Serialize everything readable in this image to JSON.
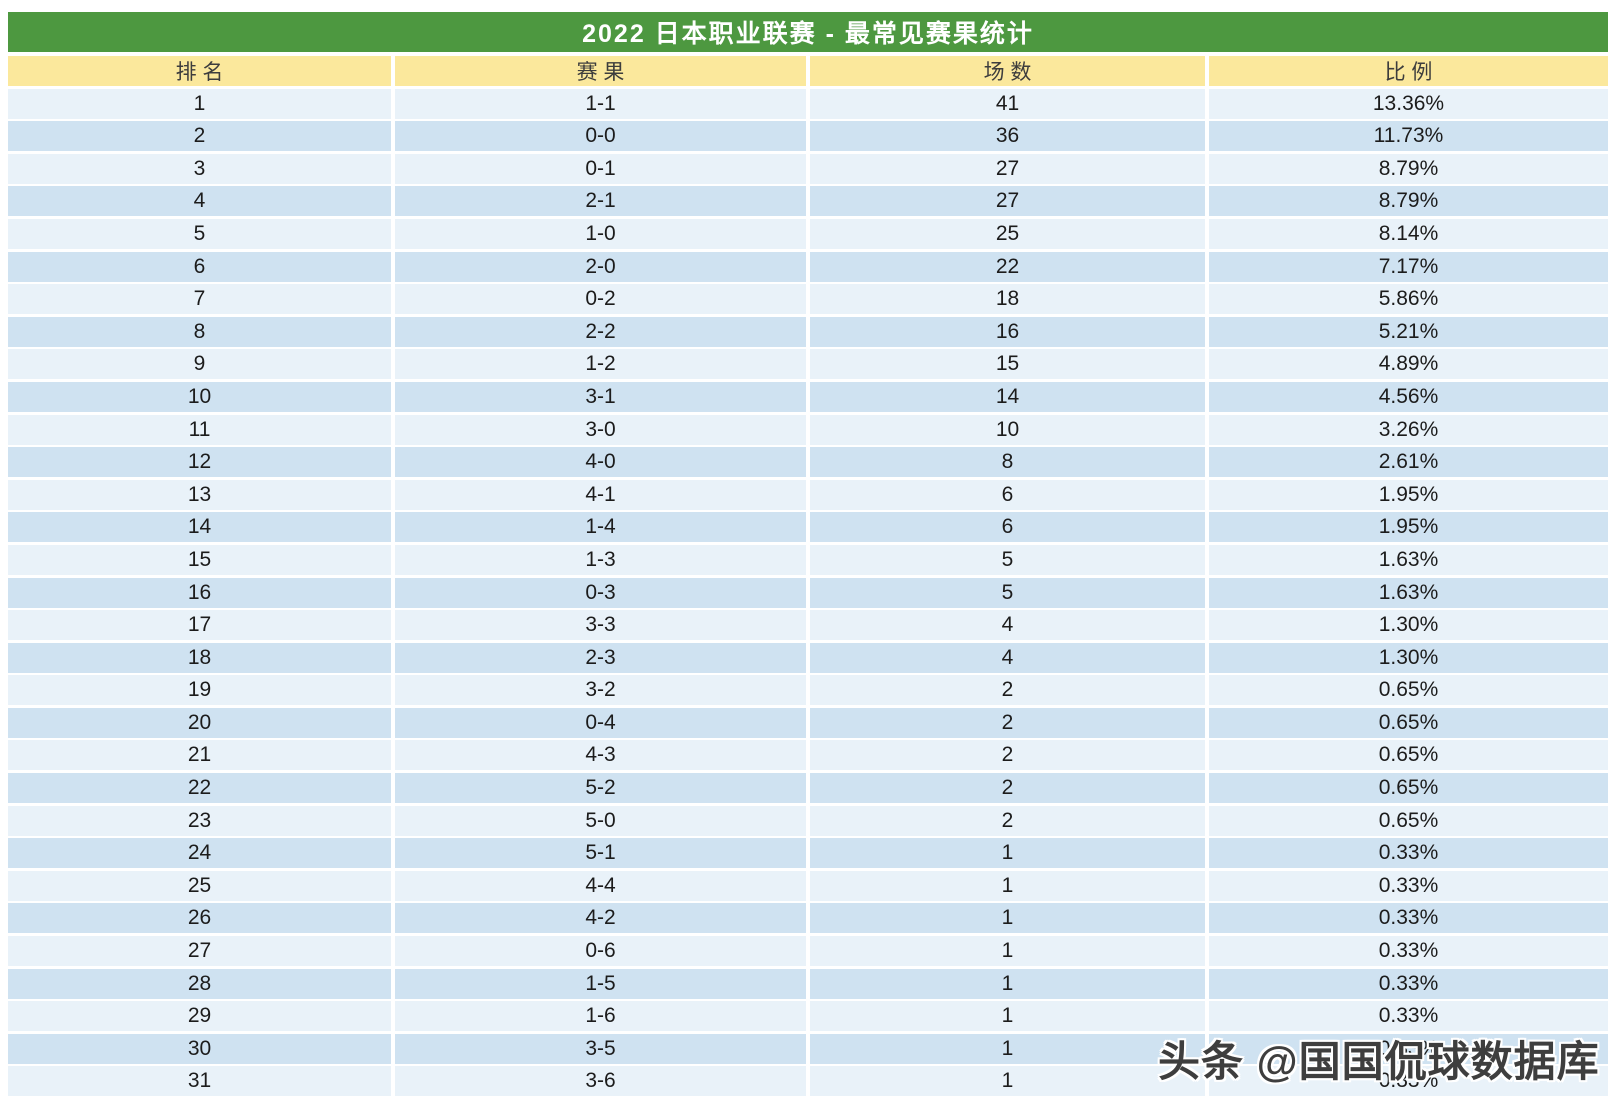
{
  "title": "2022 日本职业联赛 - 最常见赛果统计",
  "header": {
    "columns": [
      "排 名",
      "赛 果",
      "场 数",
      "比 例"
    ]
  },
  "chart_data": {
    "type": "table",
    "title": "2022 日本职业联赛 - 最常见赛果统计",
    "columns": [
      "排名",
      "赛果",
      "场数",
      "比例"
    ],
    "rows": [
      [
        "1",
        "1-1",
        "41",
        "13.36%"
      ],
      [
        "2",
        "0-0",
        "36",
        "11.73%"
      ],
      [
        "3",
        "0-1",
        "27",
        "8.79%"
      ],
      [
        "4",
        "2-1",
        "27",
        "8.79%"
      ],
      [
        "5",
        "1-0",
        "25",
        "8.14%"
      ],
      [
        "6",
        "2-0",
        "22",
        "7.17%"
      ],
      [
        "7",
        "0-2",
        "18",
        "5.86%"
      ],
      [
        "8",
        "2-2",
        "16",
        "5.21%"
      ],
      [
        "9",
        "1-2",
        "15",
        "4.89%"
      ],
      [
        "10",
        "3-1",
        "14",
        "4.56%"
      ],
      [
        "11",
        "3-0",
        "10",
        "3.26%"
      ],
      [
        "12",
        "4-0",
        "8",
        "2.61%"
      ],
      [
        "13",
        "4-1",
        "6",
        "1.95%"
      ],
      [
        "14",
        "1-4",
        "6",
        "1.95%"
      ],
      [
        "15",
        "1-3",
        "5",
        "1.63%"
      ],
      [
        "16",
        "0-3",
        "5",
        "1.63%"
      ],
      [
        "17",
        "3-3",
        "4",
        "1.30%"
      ],
      [
        "18",
        "2-3",
        "4",
        "1.30%"
      ],
      [
        "19",
        "3-2",
        "2",
        "0.65%"
      ],
      [
        "20",
        "0-4",
        "2",
        "0.65%"
      ],
      [
        "21",
        "4-3",
        "2",
        "0.65%"
      ],
      [
        "22",
        "5-2",
        "2",
        "0.65%"
      ],
      [
        "23",
        "5-0",
        "2",
        "0.65%"
      ],
      [
        "24",
        "5-1",
        "1",
        "0.33%"
      ],
      [
        "25",
        "4-4",
        "1",
        "0.33%"
      ],
      [
        "26",
        "4-2",
        "1",
        "0.33%"
      ],
      [
        "27",
        "0-6",
        "1",
        "0.33%"
      ],
      [
        "28",
        "1-5",
        "1",
        "0.33%"
      ],
      [
        "29",
        "1-6",
        "1",
        "0.33%"
      ],
      [
        "30",
        "3-5",
        "1",
        "0.33%"
      ],
      [
        "31",
        "3-6",
        "1",
        "0.33%"
      ]
    ]
  },
  "watermark": {
    "text": "头条 @国国侃球数据库"
  },
  "colors": {
    "title_bg": "#4d9840",
    "title_text": "#ffffff",
    "header_bg": "#fbe89c",
    "row_light": "#e9f2f9",
    "row_dark": "#cfe2f1",
    "data_text": "#1c1c1c",
    "watermark_text": "#3e3e3e"
  }
}
